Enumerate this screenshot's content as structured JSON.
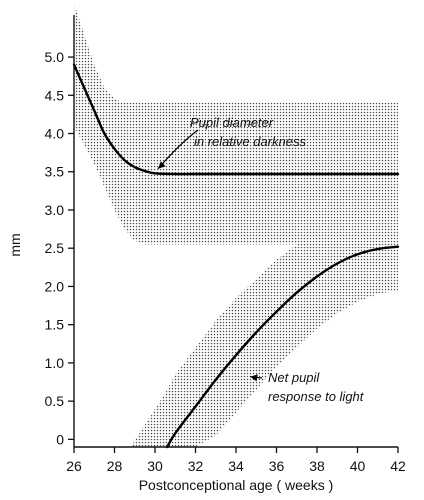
{
  "chart_data": {
    "type": "line",
    "title": "",
    "xlabel": "Postconceptional age  ( weeks )",
    "ylabel": "mm",
    "xlim": [
      26,
      42
    ],
    "ylim": [
      -0.1,
      5.55
    ],
    "x_ticks": [
      {
        "value": 26,
        "label": "26"
      },
      {
        "value": 28,
        "label": "28"
      },
      {
        "value": 30,
        "label": "30"
      },
      {
        "value": 32,
        "label": "32"
      },
      {
        "value": 34,
        "label": "34"
      },
      {
        "value": 36,
        "label": "36"
      },
      {
        "value": 38,
        "label": "38"
      },
      {
        "value": 40,
        "label": "40"
      },
      {
        "value": 42,
        "label": "42"
      }
    ],
    "y_ticks": [
      {
        "value": 0,
        "label": "0"
      },
      {
        "value": 0.5,
        "label": "0.5"
      },
      {
        "value": 1.0,
        "label": "1.0"
      },
      {
        "value": 1.5,
        "label": "1.5"
      },
      {
        "value": 2.0,
        "label": "2.0"
      },
      {
        "value": 2.5,
        "label": "2.5"
      },
      {
        "value": 3.0,
        "label": "3.0"
      },
      {
        "value": 3.5,
        "label": "3.5"
      },
      {
        "value": 4.0,
        "label": "4.0"
      },
      {
        "value": 4.5,
        "label": "4.5"
      },
      {
        "value": 5.0,
        "label": "5.0"
      }
    ],
    "grid": false,
    "series": [
      {
        "x": [
          26,
          26.5,
          27,
          27.5,
          28,
          28.5,
          29,
          29.5,
          30,
          31,
          32,
          34,
          36,
          38,
          40,
          42
        ],
        "y": [
          4.9,
          4.6,
          4.3,
          4.0,
          3.8,
          3.65,
          3.56,
          3.51,
          3.48,
          3.47,
          3.47,
          3.47,
          3.47,
          3.47,
          3.47,
          3.47
        ],
        "band_upper": [
          5.7,
          5.3,
          4.9,
          4.6,
          4.45,
          4.4,
          4.4,
          4.4,
          4.4,
          4.4,
          4.4,
          4.4,
          4.4,
          4.4,
          4.4,
          4.4
        ],
        "band_lower": [
          4.1,
          3.85,
          3.6,
          3.3,
          3.0,
          2.75,
          2.6,
          2.55,
          2.55,
          2.55,
          2.55,
          2.55,
          2.55,
          2.55,
          2.55,
          2.55
        ]
      },
      {
        "x": [
          30.6,
          31,
          32,
          33,
          34,
          35,
          36,
          37,
          38,
          39,
          40,
          41,
          42
        ],
        "y": [
          -0.1,
          0.08,
          0.43,
          0.78,
          1.1,
          1.4,
          1.67,
          1.92,
          2.13,
          2.3,
          2.42,
          2.49,
          2.52
        ],
        "band_upper": [
          0.65,
          0.85,
          1.2,
          1.55,
          1.85,
          2.1,
          2.35,
          2.55,
          2.75,
          2.9,
          3.0,
          3.1,
          3.2
        ],
        "band_lower": [
          -0.1,
          -0.1,
          -0.1,
          0.05,
          0.35,
          0.65,
          0.95,
          1.2,
          1.45,
          1.65,
          1.8,
          1.9,
          1.95
        ]
      }
    ],
    "band_lower_start": {
      "x": 28.8,
      "y": -0.1
    },
    "annotations": [
      {
        "lines": [
          "Pupil diameter",
          "in relative darkness"
        ],
        "arrow_to": {
          "x": 30,
          "y": 3.5
        }
      },
      {
        "lines": [
          "Net pupil",
          "response to light"
        ],
        "arrow_to": {
          "x": 34.5,
          "y": 0.82
        }
      }
    ]
  }
}
